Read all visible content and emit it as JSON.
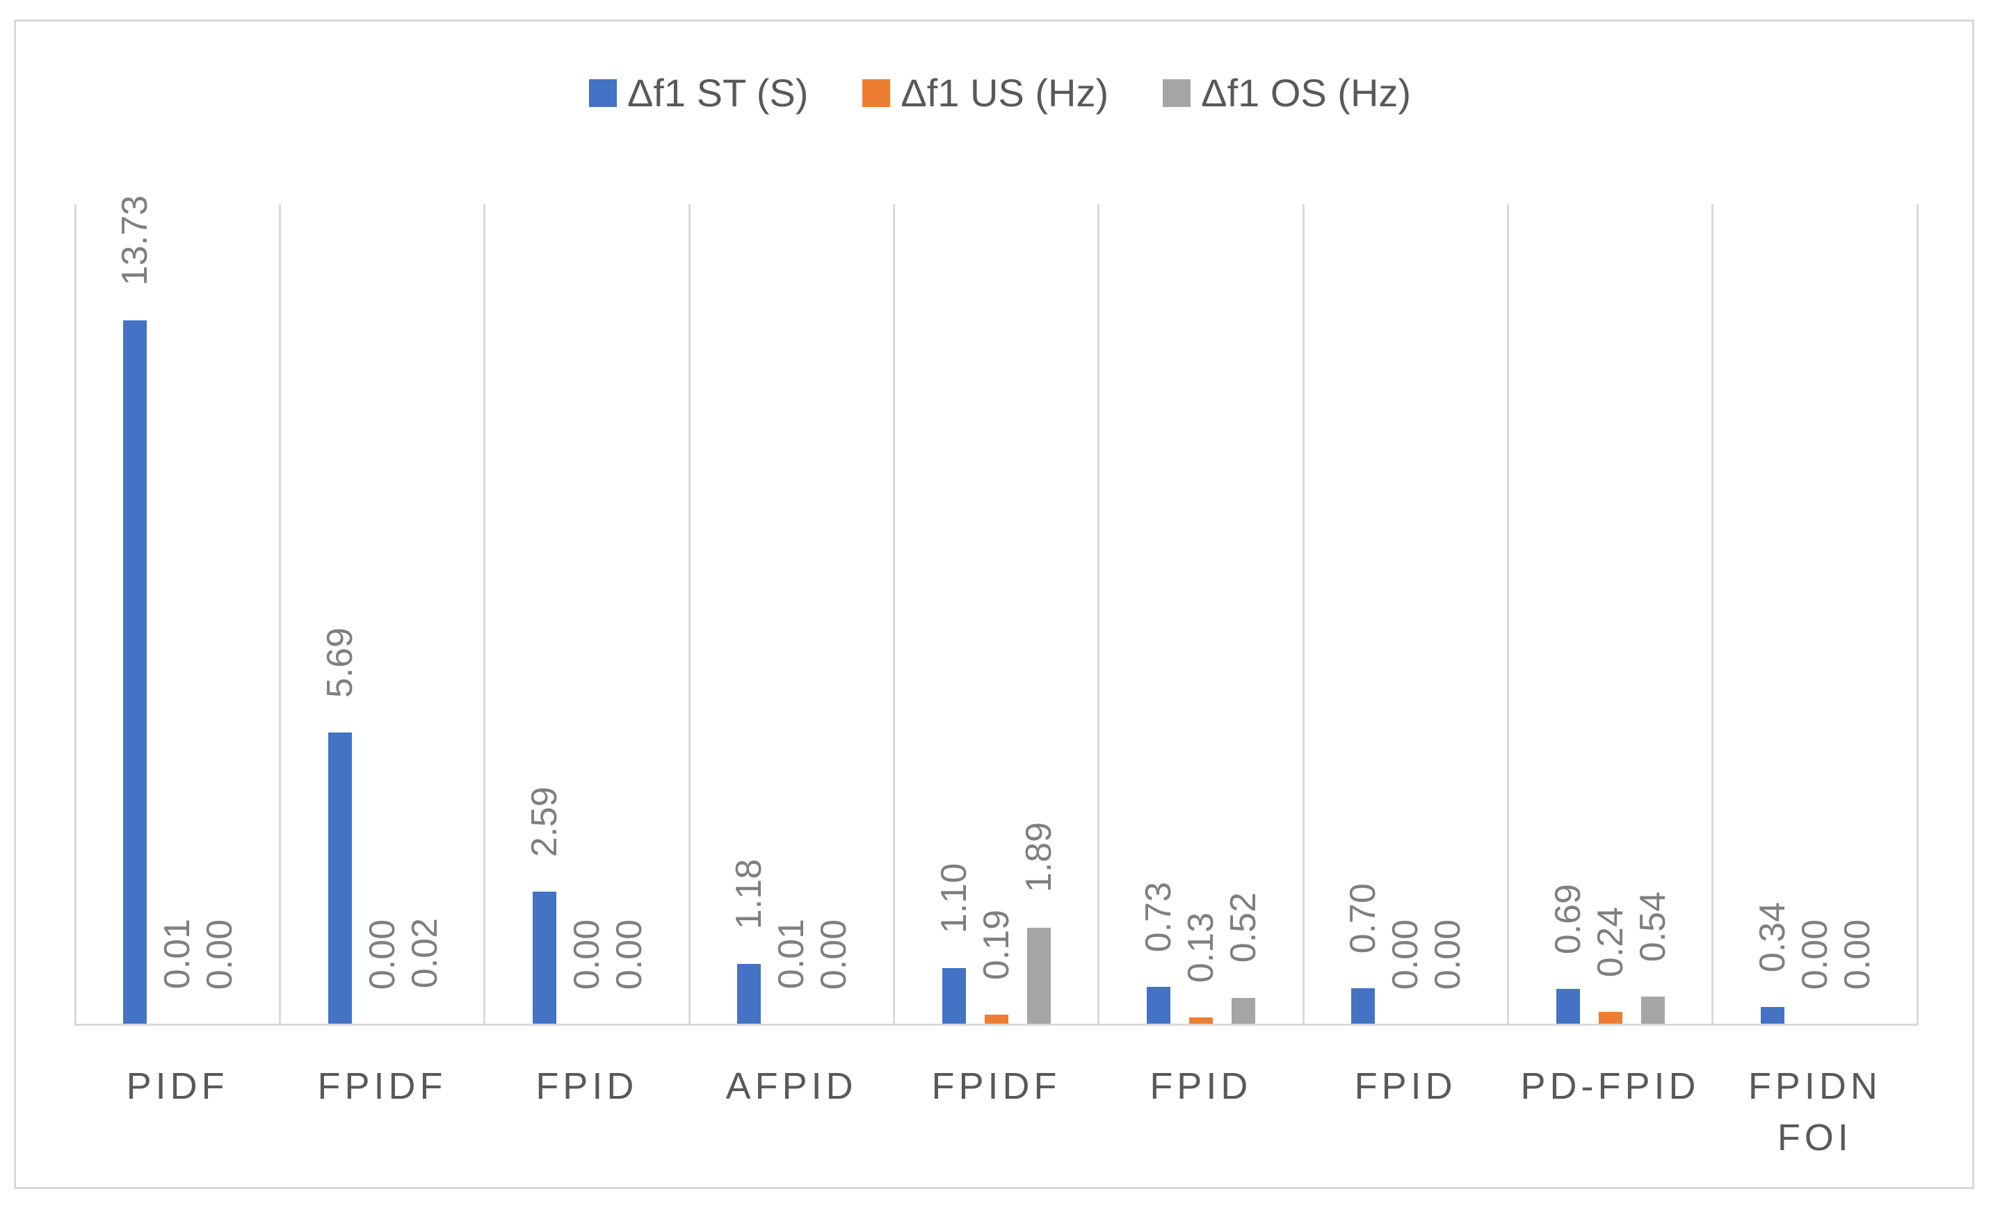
{
  "chart_data": {
    "type": "bar",
    "title": "",
    "categories": [
      "PIDF",
      "FPIDF",
      "FPID",
      "AFPID",
      "FPIDF",
      "FPID",
      "FPID",
      "PD-FPID",
      "FPIDN FOI"
    ],
    "series": [
      {
        "name": "Δf1 ST (S)",
        "color": "#4472C4",
        "values": [
          13.73,
          5.69,
          2.59,
          1.18,
          1.1,
          0.73,
          0.7,
          0.69,
          0.34
        ]
      },
      {
        "name": "Δf1 US (Hz)",
        "color": "#ED7D31",
        "values": [
          0.01,
          0.0,
          0.0,
          0.01,
          0.19,
          0.13,
          0.0,
          0.24,
          0.0
        ]
      },
      {
        "name": "Δf1 OS (Hz)",
        "color": "#A5A5A5",
        "values": [
          0.0,
          0.02,
          0.0,
          0.0,
          1.89,
          0.52,
          0.0,
          0.54,
          0.0
        ]
      }
    ],
    "data_labels": {
      "format": "0.00",
      "rotation_degrees": 90,
      "position": "outside-end"
    },
    "ylim": [
      0,
      16
    ],
    "xlabel": "",
    "ylabel": "",
    "grid": "vertical-category-separators",
    "legend_position": "top",
    "colors": {
      "gridline": "#D9D9D9",
      "axis_line": "#D9D9D9",
      "frame_border": "#D9D9D9",
      "data_label_text": "#7F7F7F",
      "category_text": "#595959",
      "legend_text": "#595959",
      "background": "#FFFFFF"
    }
  }
}
